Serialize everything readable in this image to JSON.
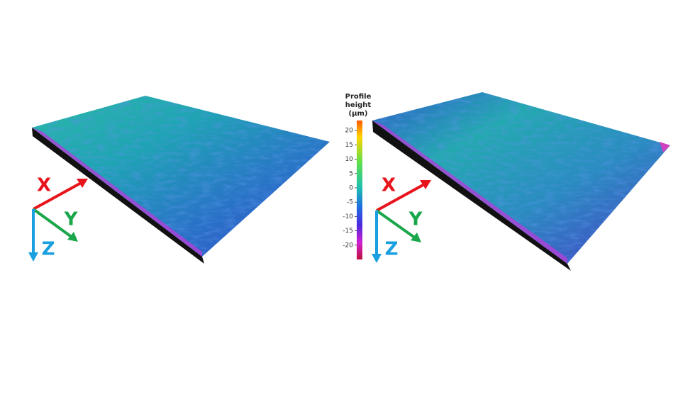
{
  "colorbar": {
    "title": [
      "Profile",
      "height",
      "(µm)"
    ],
    "lim": [
      -25,
      23.5
    ],
    "ticks": [
      20,
      15,
      10,
      5,
      0,
      -5,
      -10,
      -15,
      -20
    ]
  },
  "panels": [
    {
      "axes": {
        "x": "X",
        "y": "Y",
        "z": "Z"
      }
    },
    {
      "axes": {
        "x": "X",
        "y": "Y",
        "z": "Z"
      }
    }
  ]
}
